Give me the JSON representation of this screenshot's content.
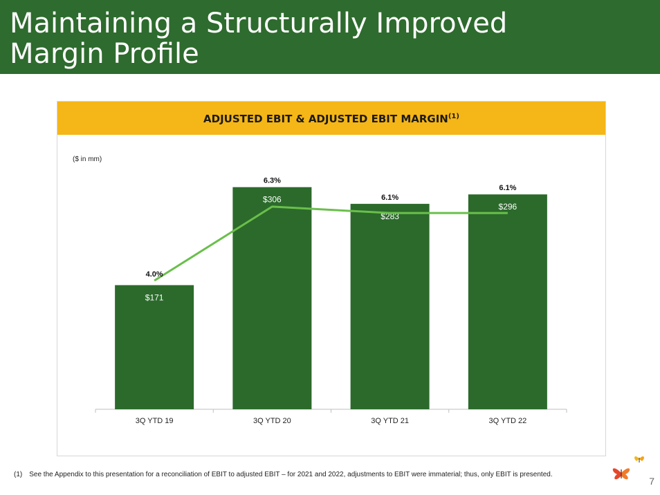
{
  "slide": {
    "title_line1": "Maintaining a Structurally Improved",
    "title_line2": "Margin Profile",
    "footnote_marker": "(1)",
    "footnote_text": "See the Appendix to this presentation for a reconciliation of EBIT to adjusted EBIT – for 2021 and 2022, adjustments to EBIT were immaterial; thus, only EBIT is presented.",
    "page_number": "7"
  },
  "colors": {
    "header_bg": "#2e6b2e",
    "chart_header_bg": "#f5b617",
    "bar": "#2b6a2b",
    "line": "#6abf4b"
  },
  "chart_data": {
    "type": "bar",
    "title": "ADJUSTED EBIT & ADJUSTED EBIT MARGIN",
    "title_superscript": "(1)",
    "unit_label": "($ in mm)",
    "categories": [
      "3Q YTD 19",
      "3Q YTD 20",
      "3Q YTD 21",
      "3Q YTD 22"
    ],
    "series": [
      {
        "type": "bar",
        "values": [
          171,
          306,
          283,
          296
        ],
        "labels": [
          "$171",
          "$306",
          "$283",
          "$296"
        ]
      },
      {
        "type": "line",
        "values": [
          4.0,
          6.3,
          6.1,
          6.1
        ],
        "labels": [
          "4.0%",
          "6.3%",
          "6.1%",
          "6.1%"
        ]
      }
    ],
    "ylim_bar": [
      0,
      340
    ],
    "ylim_line": [
      0,
      7.2
    ],
    "grid": false
  }
}
